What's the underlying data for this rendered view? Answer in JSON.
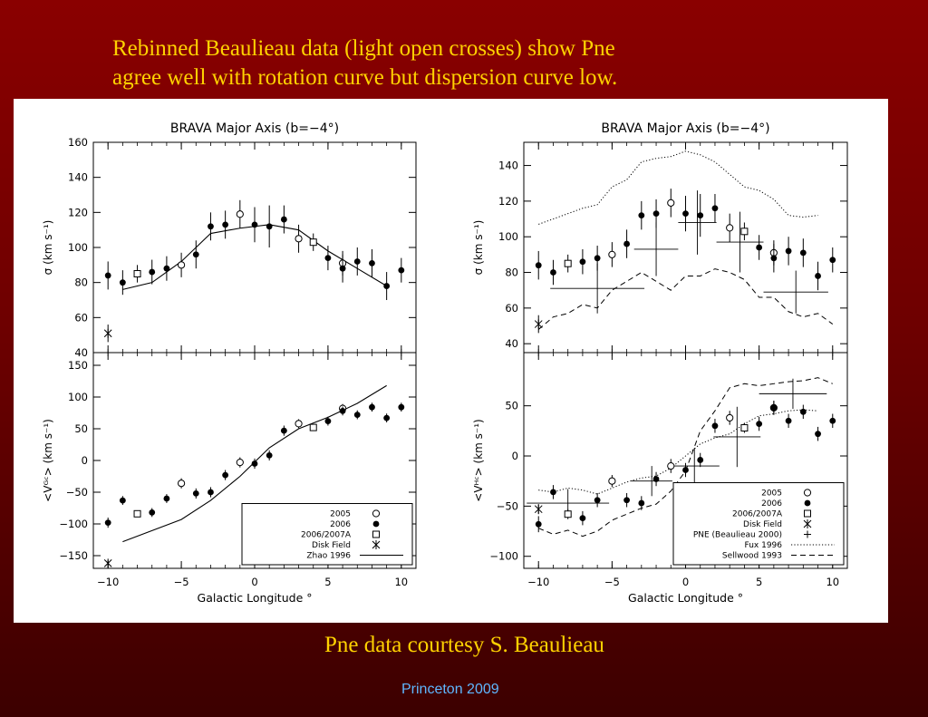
{
  "slide": {
    "title_line1": "Rebinned Beaulieau data (light open crosses) show Pne",
    "title_line2": "agree well with rotation curve but dispersion curve low.",
    "caption": "Pne data courtesy S. Beaulieau",
    "footer": "Princeton 2009"
  },
  "chart_data": [
    {
      "type": "scatter",
      "title": "BRAVA Major Axis (b=−4°)",
      "ylabel": "σ (km s⁻¹)",
      "xlabel": "",
      "xlim": [
        -11,
        11
      ],
      "ylim": [
        40,
        160
      ],
      "xticks": [
        -10,
        -5,
        0,
        5,
        10
      ],
      "yticks": [
        40,
        60,
        80,
        100,
        120,
        140,
        160
      ],
      "series": [
        {
          "name": "2005",
          "marker": "open-circle",
          "points": [
            [
              -5,
              90,
              7
            ],
            [
              -1,
              119,
              8
            ],
            [
              3,
              105,
              8
            ],
            [
              6,
              91,
              7
            ]
          ]
        },
        {
          "name": "2006",
          "marker": "filled-circle",
          "points": [
            [
              -10,
              84,
              8
            ],
            [
              -9,
              80,
              7
            ],
            [
              -7,
              86,
              7
            ],
            [
              -6,
              88,
              7
            ],
            [
              -4,
              96,
              8
            ],
            [
              -3,
              112,
              8
            ],
            [
              -2,
              113,
              8
            ],
            [
              0,
              113,
              10
            ],
            [
              1,
              112,
              12
            ],
            [
              2,
              116,
              8
            ],
            [
              5,
              94,
              7
            ],
            [
              6,
              88,
              8
            ],
            [
              7,
              92,
              8
            ],
            [
              8,
              91,
              8
            ],
            [
              9,
              78,
              8
            ],
            [
              10,
              87,
              7
            ]
          ]
        },
        {
          "name": "2006/2007A",
          "marker": "open-square",
          "points": [
            [
              -8,
              85,
              5
            ],
            [
              4,
              103,
              5
            ]
          ]
        },
        {
          "name": "Disk Field",
          "marker": "cross",
          "points": [
            [
              -10,
              51,
              5
            ]
          ]
        }
      ],
      "lines": [
        {
          "name": "Zhao 1996",
          "style": "solid",
          "x": [
            -9,
            -7,
            -5,
            -3,
            -1,
            1,
            3,
            5,
            7,
            9
          ],
          "y": [
            76,
            80,
            92,
            108,
            111,
            113,
            110,
            98,
            88,
            78
          ]
        }
      ]
    },
    {
      "type": "scatter",
      "title": "",
      "ylabel": "<Vᴳᶜ> (km s⁻¹)",
      "xlabel": "Galactic Longitude °",
      "xlim": [
        -11,
        11
      ],
      "ylim": [
        -170,
        170
      ],
      "xticks": [
        -10,
        -5,
        0,
        5,
        10
      ],
      "yticks": [
        -150,
        -100,
        -50,
        0,
        50,
        100,
        150
      ],
      "series": [
        {
          "name": "2005",
          "marker": "open-circle",
          "points": [
            [
              -5,
              -36,
              8
            ],
            [
              -1,
              -3,
              8
            ],
            [
              3,
              58,
              7
            ],
            [
              6,
              82,
              7
            ]
          ]
        },
        {
          "name": "2006",
          "marker": "filled-circle",
          "points": [
            [
              -10,
              -98,
              8
            ],
            [
              -9,
              -63,
              7
            ],
            [
              -7,
              -82,
              7
            ],
            [
              -6,
              -60,
              7
            ],
            [
              -4,
              -52,
              8
            ],
            [
              -3,
              -50,
              8
            ],
            [
              -2,
              -23,
              8
            ],
            [
              0,
              -5,
              8
            ],
            [
              1,
              8,
              8
            ],
            [
              2,
              47,
              8
            ],
            [
              5,
              62,
              7
            ],
            [
              6,
              78,
              7
            ],
            [
              7,
              72,
              7
            ],
            [
              8,
              84,
              7
            ],
            [
              9,
              67,
              7
            ],
            [
              10,
              84,
              7
            ]
          ]
        },
        {
          "name": "2006/2007A",
          "marker": "open-square",
          "points": [
            [
              -8,
              -84,
              5
            ],
            [
              4,
              52,
              5
            ]
          ]
        },
        {
          "name": "Disk Field",
          "marker": "cross",
          "points": [
            [
              -10,
              -162,
              5
            ]
          ]
        }
      ],
      "lines": [
        {
          "name": "Zhao 1996",
          "style": "solid",
          "x": [
            -9,
            -5,
            -3,
            -1,
            1,
            3,
            5,
            7,
            9
          ],
          "y": [
            -128,
            -93,
            -63,
            -25,
            20,
            50,
            68,
            90,
            118
          ]
        }
      ],
      "legend": {
        "placement": "bottom-right",
        "entries": [
          {
            "label": "2005",
            "symbol": "open-circle"
          },
          {
            "label": "2006",
            "symbol": "filled-circle"
          },
          {
            "label": "2006/2007A",
            "symbol": "open-square"
          },
          {
            "label": "Disk Field",
            "symbol": "cross"
          },
          {
            "label": "Zhao 1996",
            "symbol": "solid-line"
          }
        ]
      }
    },
    {
      "type": "scatter",
      "title": "BRAVA Major Axis (b=−4°)",
      "ylabel": "σ (km s⁻¹)",
      "xlabel": "",
      "xlim": [
        -11,
        11
      ],
      "ylim": [
        35,
        153
      ],
      "xticks": [
        -10,
        -5,
        0,
        5,
        10
      ],
      "yticks": [
        40,
        60,
        80,
        100,
        120,
        140
      ],
      "series": [
        {
          "name": "2005",
          "marker": "open-circle",
          "points": [
            [
              -5,
              90,
              7
            ],
            [
              -1,
              119,
              8
            ],
            [
              3,
              105,
              8
            ],
            [
              6,
              91,
              7
            ]
          ]
        },
        {
          "name": "2006",
          "marker": "filled-circle",
          "points": [
            [
              -10,
              84,
              8
            ],
            [
              -9,
              80,
              7
            ],
            [
              -7,
              86,
              7
            ],
            [
              -6,
              88,
              7
            ],
            [
              -4,
              96,
              8
            ],
            [
              -3,
              112,
              8
            ],
            [
              -2,
              113,
              8
            ],
            [
              0,
              113,
              10
            ],
            [
              1,
              112,
              12
            ],
            [
              2,
              116,
              8
            ],
            [
              5,
              94,
              7
            ],
            [
              6,
              88,
              8
            ],
            [
              7,
              92,
              8
            ],
            [
              8,
              91,
              8
            ],
            [
              9,
              78,
              8
            ],
            [
              10,
              87,
              7
            ]
          ]
        },
        {
          "name": "2006/2007A",
          "marker": "open-square",
          "points": [
            [
              -8,
              85,
              5
            ],
            [
              4,
              103,
              5
            ]
          ]
        },
        {
          "name": "Disk Field",
          "marker": "cross",
          "points": [
            [
              -10,
              51,
              5
            ]
          ]
        }
      ],
      "pne_points": [
        {
          "x": -6,
          "y": 71,
          "xerr": 3.2,
          "yerr": 14
        },
        {
          "x": -2,
          "y": 93,
          "xerr": 1.5,
          "yerr": 15
        },
        {
          "x": 0.8,
          "y": 108,
          "xerr": 1.3,
          "yerr": 18
        },
        {
          "x": 3.7,
          "y": 97,
          "xerr": 1.6,
          "yerr": 17
        },
        {
          "x": 7.5,
          "y": 69,
          "xerr": 2.2,
          "yerr": 12
        }
      ],
      "lines": [
        {
          "name": "Fux 1996",
          "style": "dotted",
          "x": [
            -10,
            -9,
            -8,
            -7,
            -6,
            -5,
            -4,
            -3,
            -2,
            -1,
            0,
            1,
            2,
            3,
            4,
            5,
            6,
            7,
            8,
            9
          ],
          "y": [
            107,
            110,
            113,
            116,
            118,
            128,
            132,
            142,
            144,
            145,
            148,
            146,
            142,
            135,
            128,
            126,
            121,
            112,
            111,
            112
          ]
        },
        {
          "name": "Sellwood 1993",
          "style": "dashed",
          "x": [
            -10,
            -9,
            -8,
            -7,
            -6,
            -5,
            -4,
            -3,
            -2,
            -1,
            0,
            1,
            2,
            3,
            4,
            5,
            6,
            7,
            8,
            9,
            10
          ],
          "y": [
            48,
            55,
            57,
            62,
            60,
            70,
            75,
            80,
            75,
            70,
            78,
            78,
            82,
            80,
            76,
            66,
            66,
            58,
            55,
            57,
            51
          ]
        }
      ]
    },
    {
      "type": "scatter",
      "title": "",
      "ylabel": "<Vᴴᶜ> (km s⁻¹)",
      "xlabel": "Galactic Longitude °",
      "xlim": [
        -11,
        11
      ],
      "ylim": [
        -112,
        103
      ],
      "xticks": [
        -10,
        -5,
        0,
        5,
        10
      ],
      "yticks": [
        -100,
        -50,
        0,
        50
      ],
      "series": [
        {
          "name": "2005",
          "marker": "open-circle",
          "points": [
            [
              -5,
              -25,
              6
            ],
            [
              -1,
              -10,
              7
            ],
            [
              3,
              38,
              7
            ],
            [
              6,
              48,
              7
            ]
          ]
        },
        {
          "name": "2006",
          "marker": "filled-circle",
          "points": [
            [
              -10,
              -68,
              8
            ],
            [
              -9,
              -36,
              7
            ],
            [
              -7,
              -62,
              7
            ],
            [
              -6,
              -44,
              7
            ],
            [
              -4,
              -44,
              7
            ],
            [
              -3,
              -47,
              7
            ],
            [
              -2,
              -23,
              7
            ],
            [
              0,
              -14,
              7
            ],
            [
              1,
              -4,
              7
            ],
            [
              2,
              30,
              7
            ],
            [
              5,
              32,
              7
            ],
            [
              6,
              48,
              7
            ],
            [
              7,
              35,
              7
            ],
            [
              8,
              44,
              7
            ],
            [
              9,
              22,
              7
            ],
            [
              10,
              35,
              7
            ]
          ]
        },
        {
          "name": "2006/2007A",
          "marker": "open-square",
          "points": [
            [
              -8,
              -58,
              5
            ],
            [
              4,
              28,
              5
            ]
          ]
        },
        {
          "name": "Disk Field",
          "marker": "cross",
          "points": [
            [
              -10,
              -53,
              5
            ]
          ]
        }
      ],
      "pne_points": [
        {
          "x": -8,
          "y": -47,
          "xerr": 2.8,
          "yerr": 14
        },
        {
          "x": -2.3,
          "y": -25,
          "xerr": 1.4,
          "yerr": 15
        },
        {
          "x": 0.6,
          "y": -10,
          "xerr": 1.7,
          "yerr": 18
        },
        {
          "x": 3.5,
          "y": 19,
          "xerr": 1.6,
          "yerr": 30
        },
        {
          "x": 7.3,
          "y": 62,
          "xerr": 2.3,
          "yerr": 15
        }
      ],
      "lines": [
        {
          "name": "Fux 1996",
          "style": "dotted",
          "x": [
            -10,
            -9,
            -8,
            -7,
            -6,
            -5,
            -4,
            -3,
            -2,
            -1,
            0,
            1,
            2,
            3,
            4,
            5,
            6,
            7,
            8,
            9
          ],
          "y": [
            -34,
            -36,
            -32,
            -34,
            -38,
            -32,
            -26,
            -22,
            -20,
            -12,
            0,
            12,
            18,
            22,
            32,
            40,
            42,
            45,
            46,
            45
          ]
        },
        {
          "name": "Sellwood 1993",
          "style": "dashed",
          "x": [
            -10,
            -9,
            -8,
            -7,
            -6,
            -5,
            -4,
            -3,
            -2,
            -1,
            0,
            1,
            2,
            3,
            4,
            5,
            6,
            7,
            8,
            9,
            10
          ],
          "y": [
            -72,
            -78,
            -74,
            -80,
            -75,
            -64,
            -58,
            -52,
            -48,
            -35,
            -15,
            25,
            45,
            68,
            72,
            70,
            72,
            74,
            75,
            78,
            72
          ]
        }
      ],
      "legend": {
        "placement": "bottom-right",
        "entries": [
          {
            "label": "2005",
            "symbol": "open-circle"
          },
          {
            "label": "2006",
            "symbol": "filled-circle"
          },
          {
            "label": "2006/2007A",
            "symbol": "open-square"
          },
          {
            "label": "Disk Field",
            "symbol": "cross"
          },
          {
            "label": "PNE (Beaulieau 2000)",
            "symbol": "plus"
          },
          {
            "label": "Fux 1996",
            "symbol": "dotted-line"
          },
          {
            "label": "Sellwood 1993",
            "symbol": "dashed-line"
          }
        ]
      }
    }
  ]
}
